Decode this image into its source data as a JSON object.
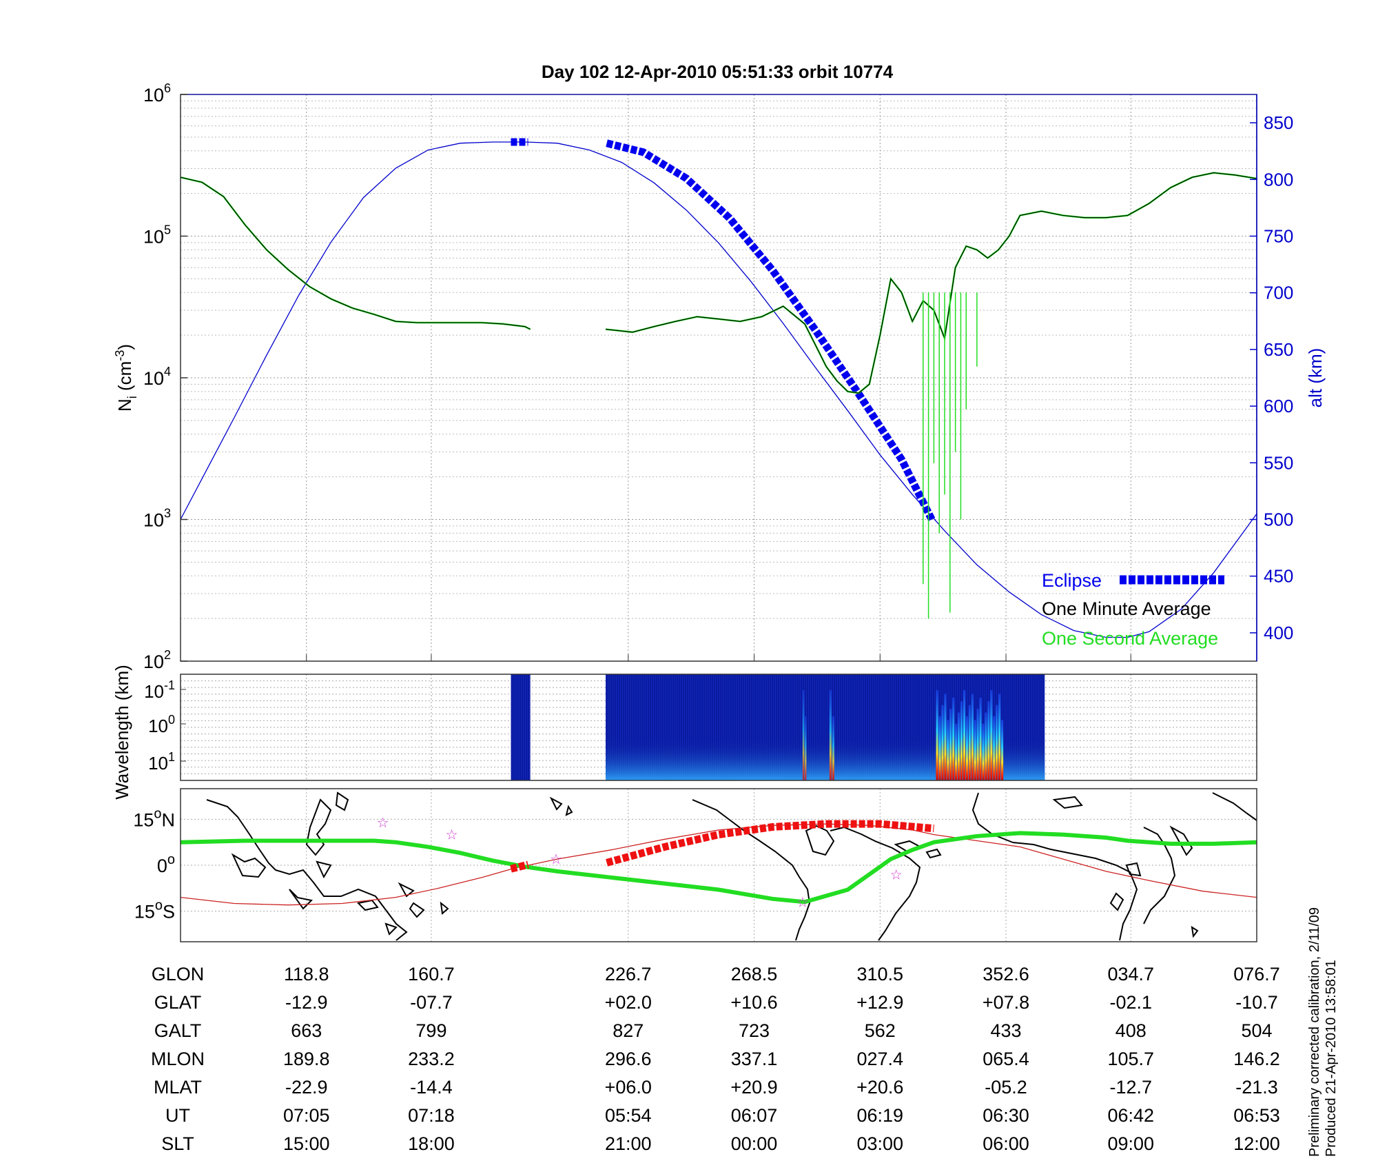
{
  "title": "Day 102  12-Apr-2010 05:51:33   orbit 10774",
  "colors": {
    "density_1min": "#000000",
    "density_1sec": "#22dd22",
    "altitude": "#0000cc",
    "eclipse": "#0000ee",
    "track": "#22dd22",
    "magnetic_equator": "#cc2222",
    "spectrogram_bg": "#0a1aa0"
  },
  "chart_data": [
    {
      "type": "line",
      "name": "ion-density",
      "ylabel_left": "N",
      "ylabel_left_sub": "i",
      "ylabel_left_unit": "(cm",
      "ylabel_left_unit_exp": "-3",
      "ylabel_left_unit_close": ")",
      "ylabel_right": "alt (km)",
      "yscale_left": "log",
      "ylim_left": [
        100,
        1000000
      ],
      "left_ticks": [
        {
          "base": "10",
          "exp": "2",
          "value": 100
        },
        {
          "base": "10",
          "exp": "3",
          "value": 1000
        },
        {
          "base": "10",
          "exp": "4",
          "value": 10000
        },
        {
          "base": "10",
          "exp": "5",
          "value": 100000
        },
        {
          "base": "10",
          "exp": "6",
          "value": 1000000
        }
      ],
      "ylim_right": [
        375,
        875
      ],
      "right_ticks": [
        "400",
        "450",
        "500",
        "550",
        "600",
        "650",
        "700",
        "750",
        "800",
        "850"
      ],
      "xlim": [
        0,
        1
      ],
      "grid": true,
      "legend": {
        "placement": "bottom-right",
        "entries": [
          "Eclipse",
          "One Minute Average",
          "One Second Average"
        ]
      },
      "altitude_series": {
        "x": [
          0,
          0.02,
          0.05,
          0.08,
          0.11,
          0.14,
          0.17,
          0.2,
          0.23,
          0.26,
          0.29,
          0.305,
          0.32,
          0.35,
          0.38,
          0.41,
          0.44,
          0.47,
          0.5,
          0.53,
          0.56,
          0.59,
          0.62,
          0.65,
          0.68,
          0.71,
          0.74,
          0.77,
          0.8,
          0.83,
          0.86,
          0.88,
          0.9,
          0.93,
          0.96,
          1.0
        ],
        "y": [
          500,
          536,
          590,
          645,
          698,
          745,
          784,
          810,
          826,
          832,
          833,
          833,
          833,
          832,
          826,
          815,
          797,
          773,
          744,
          710,
          673,
          634,
          596,
          557,
          522,
          490,
          460,
          436,
          416,
          402,
          396,
          396,
          401,
          421,
          453,
          505
        ]
      },
      "eclipse_segments": [
        {
          "x": [
            0.307,
            0.323
          ],
          "y": [
            833,
            833
          ]
        },
        {
          "x": [
            0.396,
            0.43,
            0.47,
            0.51,
            0.55,
            0.59,
            0.63,
            0.67,
            0.698
          ],
          "y": [
            832,
            824,
            801,
            766,
            720,
            667,
            611,
            553,
            500
          ]
        }
      ],
      "density_segments": [
        {
          "x": [
            0,
            0.02,
            0.04,
            0.06,
            0.08,
            0.1,
            0.12,
            0.14,
            0.16,
            0.18,
            0.2,
            0.22,
            0.24,
            0.26,
            0.28,
            0.3,
            0.32,
            0.325
          ],
          "y": [
            260000,
            240000,
            190000,
            120000,
            80000,
            58000,
            44000,
            36000,
            31000,
            28000,
            25000,
            24500,
            24500,
            24500,
            24500,
            24000,
            23000,
            22000
          ]
        },
        {
          "x": [
            0.395,
            0.42,
            0.44,
            0.46,
            0.48,
            0.5,
            0.52,
            0.54,
            0.56,
            0.58,
            0.59,
            0.6,
            0.61,
            0.62,
            0.63,
            0.64,
            0.65,
            0.66,
            0.67,
            0.68,
            0.69,
            0.7,
            0.71,
            0.72,
            0.73,
            0.74,
            0.75,
            0.76,
            0.77,
            0.78,
            0.8,
            0.82,
            0.84,
            0.86,
            0.88,
            0.9,
            0.92,
            0.94,
            0.96,
            0.98,
            1.0
          ],
          "y": [
            22000,
            21000,
            23000,
            25000,
            27000,
            26000,
            25000,
            27000,
            32000,
            24000,
            17000,
            12000,
            9500,
            8000,
            7800,
            9000,
            20000,
            50000,
            40000,
            25000,
            35000,
            30000,
            19000,
            60000,
            85000,
            80000,
            70000,
            80000,
            100000,
            140000,
            150000,
            140000,
            135000,
            135000,
            140000,
            170000,
            220000,
            260000,
            280000,
            270000,
            255000
          ]
        }
      ],
      "second_avg_spikes": [
        {
          "x": 0.69,
          "y": 350
        },
        {
          "x": 0.695,
          "y": 200
        },
        {
          "x": 0.7,
          "y": 2500
        },
        {
          "x": 0.705,
          "y": 800
        },
        {
          "x": 0.71,
          "y": 1500
        },
        {
          "x": 0.715,
          "y": 220
        },
        {
          "x": 0.72,
          "y": 3000
        },
        {
          "x": 0.725,
          "y": 1000
        },
        {
          "x": 0.73,
          "y": 6000
        },
        {
          "x": 0.74,
          "y": 12000
        }
      ]
    },
    {
      "type": "heatmap",
      "name": "irregularity-spectrogram",
      "ylabel": "Wavelength (km)",
      "yscale": "log",
      "y_ticks": [
        {
          "base": "10",
          "exp": "-1"
        },
        {
          "base": "10",
          "exp": "0"
        },
        {
          "base": "10",
          "exp": "1"
        }
      ],
      "data_ranges": [
        [
          0.307,
          0.325
        ],
        [
          0.395,
          0.803
        ]
      ],
      "hotspots": [
        {
          "x": [
            0.578,
            0.582
          ],
          "intensity": 0.7
        },
        {
          "x": [
            0.603,
            0.608
          ],
          "intensity": 0.8
        },
        {
          "x": [
            0.702,
            0.765
          ],
          "intensity": 1.0
        }
      ]
    },
    {
      "type": "line",
      "name": "orbit-track-map",
      "ylim": [
        -25,
        25
      ],
      "y_ticks": [
        {
          "deg": "15",
          "hemi": "N",
          "value": 15
        },
        {
          "deg": "0",
          "hemi": "",
          "value": 0
        },
        {
          "deg": "15",
          "hemi": "S",
          "value": -15
        }
      ],
      "track": {
        "x": [
          0,
          0.06,
          0.12,
          0.18,
          0.2,
          0.23,
          0.26,
          0.29,
          0.32,
          0.35,
          0.4,
          0.45,
          0.5,
          0.55,
          0.58,
          0.62,
          0.64,
          0.66,
          0.68,
          0.7,
          0.74,
          0.78,
          0.82,
          0.86,
          0.88,
          0.92,
          0.96,
          1.0
        ],
        "y": [
          7.5,
          8,
          8,
          8,
          7.5,
          6,
          4,
          1.5,
          -0.5,
          -2,
          -4,
          -6,
          -8,
          -11,
          -12,
          -8,
          -3,
          2,
          5,
          7.5,
          9.5,
          10.5,
          10,
          9,
          8,
          7,
          7,
          7.5
        ]
      },
      "magnetic_equator": {
        "x": [
          0,
          0.05,
          0.1,
          0.15,
          0.2,
          0.24,
          0.28,
          0.31,
          0.35,
          0.4,
          0.45,
          0.5,
          0.55,
          0.6,
          0.64,
          0.68,
          0.7,
          0.74,
          0.78,
          0.82,
          0.86,
          0.9,
          0.95,
          1.0
        ],
        "y": [
          -10.5,
          -12.5,
          -13,
          -12.5,
          -10.5,
          -7.5,
          -4,
          -1,
          2,
          5,
          8.5,
          11.5,
          13,
          13.5,
          13,
          11.5,
          10,
          8,
          6,
          2,
          -2,
          -5,
          -8.5,
          -10.5
        ]
      },
      "red_segments": [
        {
          "x": [
            0.307,
            0.323
          ],
          "y": [
            -1.2,
            0.2
          ]
        },
        {
          "x": [
            0.396,
            0.45,
            0.5,
            0.55,
            0.6,
            0.65,
            0.7
          ],
          "y": [
            0.8,
            6,
            10,
            12.5,
            13.5,
            13.5,
            12
          ]
        }
      ],
      "stars": [
        {
          "x": 0.188,
          "y": 14
        },
        {
          "x": 0.252,
          "y": 10
        },
        {
          "x": 0.349,
          "y": 2
        },
        {
          "x": 0.578,
          "y": -12
        },
        {
          "x": 0.665,
          "y": -3
        }
      ]
    }
  ],
  "ephemeris": {
    "rows": [
      {
        "label": "GLON",
        "values": [
          "118.8",
          "160.7",
          "226.7",
          "268.5",
          "310.5",
          "352.6",
          "034.7",
          "076.7"
        ]
      },
      {
        "label": "GLAT",
        "values": [
          "-12.9",
          "-07.7",
          "+02.0",
          "+10.6",
          "+12.9",
          "+07.8",
          "-02.1",
          "-10.7"
        ]
      },
      {
        "label": "GALT",
        "values": [
          "663",
          "799",
          "827",
          "723",
          "562",
          "433",
          "408",
          "504"
        ]
      },
      {
        "label": "MLON",
        "values": [
          "189.8",
          "233.2",
          "296.6",
          "337.1",
          "027.4",
          "065.4",
          "105.7",
          "146.2"
        ]
      },
      {
        "label": "MLAT",
        "values": [
          "-22.9",
          "-14.4",
          "+06.0",
          "+20.9",
          "+20.6",
          "-05.2",
          "-12.7",
          "-21.3"
        ]
      },
      {
        "label": "UT",
        "values": [
          "07:05",
          "07:18",
          "05:54",
          "06:07",
          "06:19",
          "06:30",
          "06:42",
          "06:53"
        ]
      },
      {
        "label": "SLT",
        "values": [
          "15:00",
          "18:00",
          "21:00",
          "00:00",
          "03:00",
          "06:00",
          "09:00",
          "12:00"
        ]
      }
    ],
    "column_x": [
      0.117,
      0.233,
      0.416,
      0.533,
      0.65,
      0.767,
      0.883,
      1.0
    ]
  },
  "footnote": {
    "line1": "Preliminary corrected calibration, 2/11/09",
    "line2": "Produced 21-Apr-2010 13:58:01"
  }
}
